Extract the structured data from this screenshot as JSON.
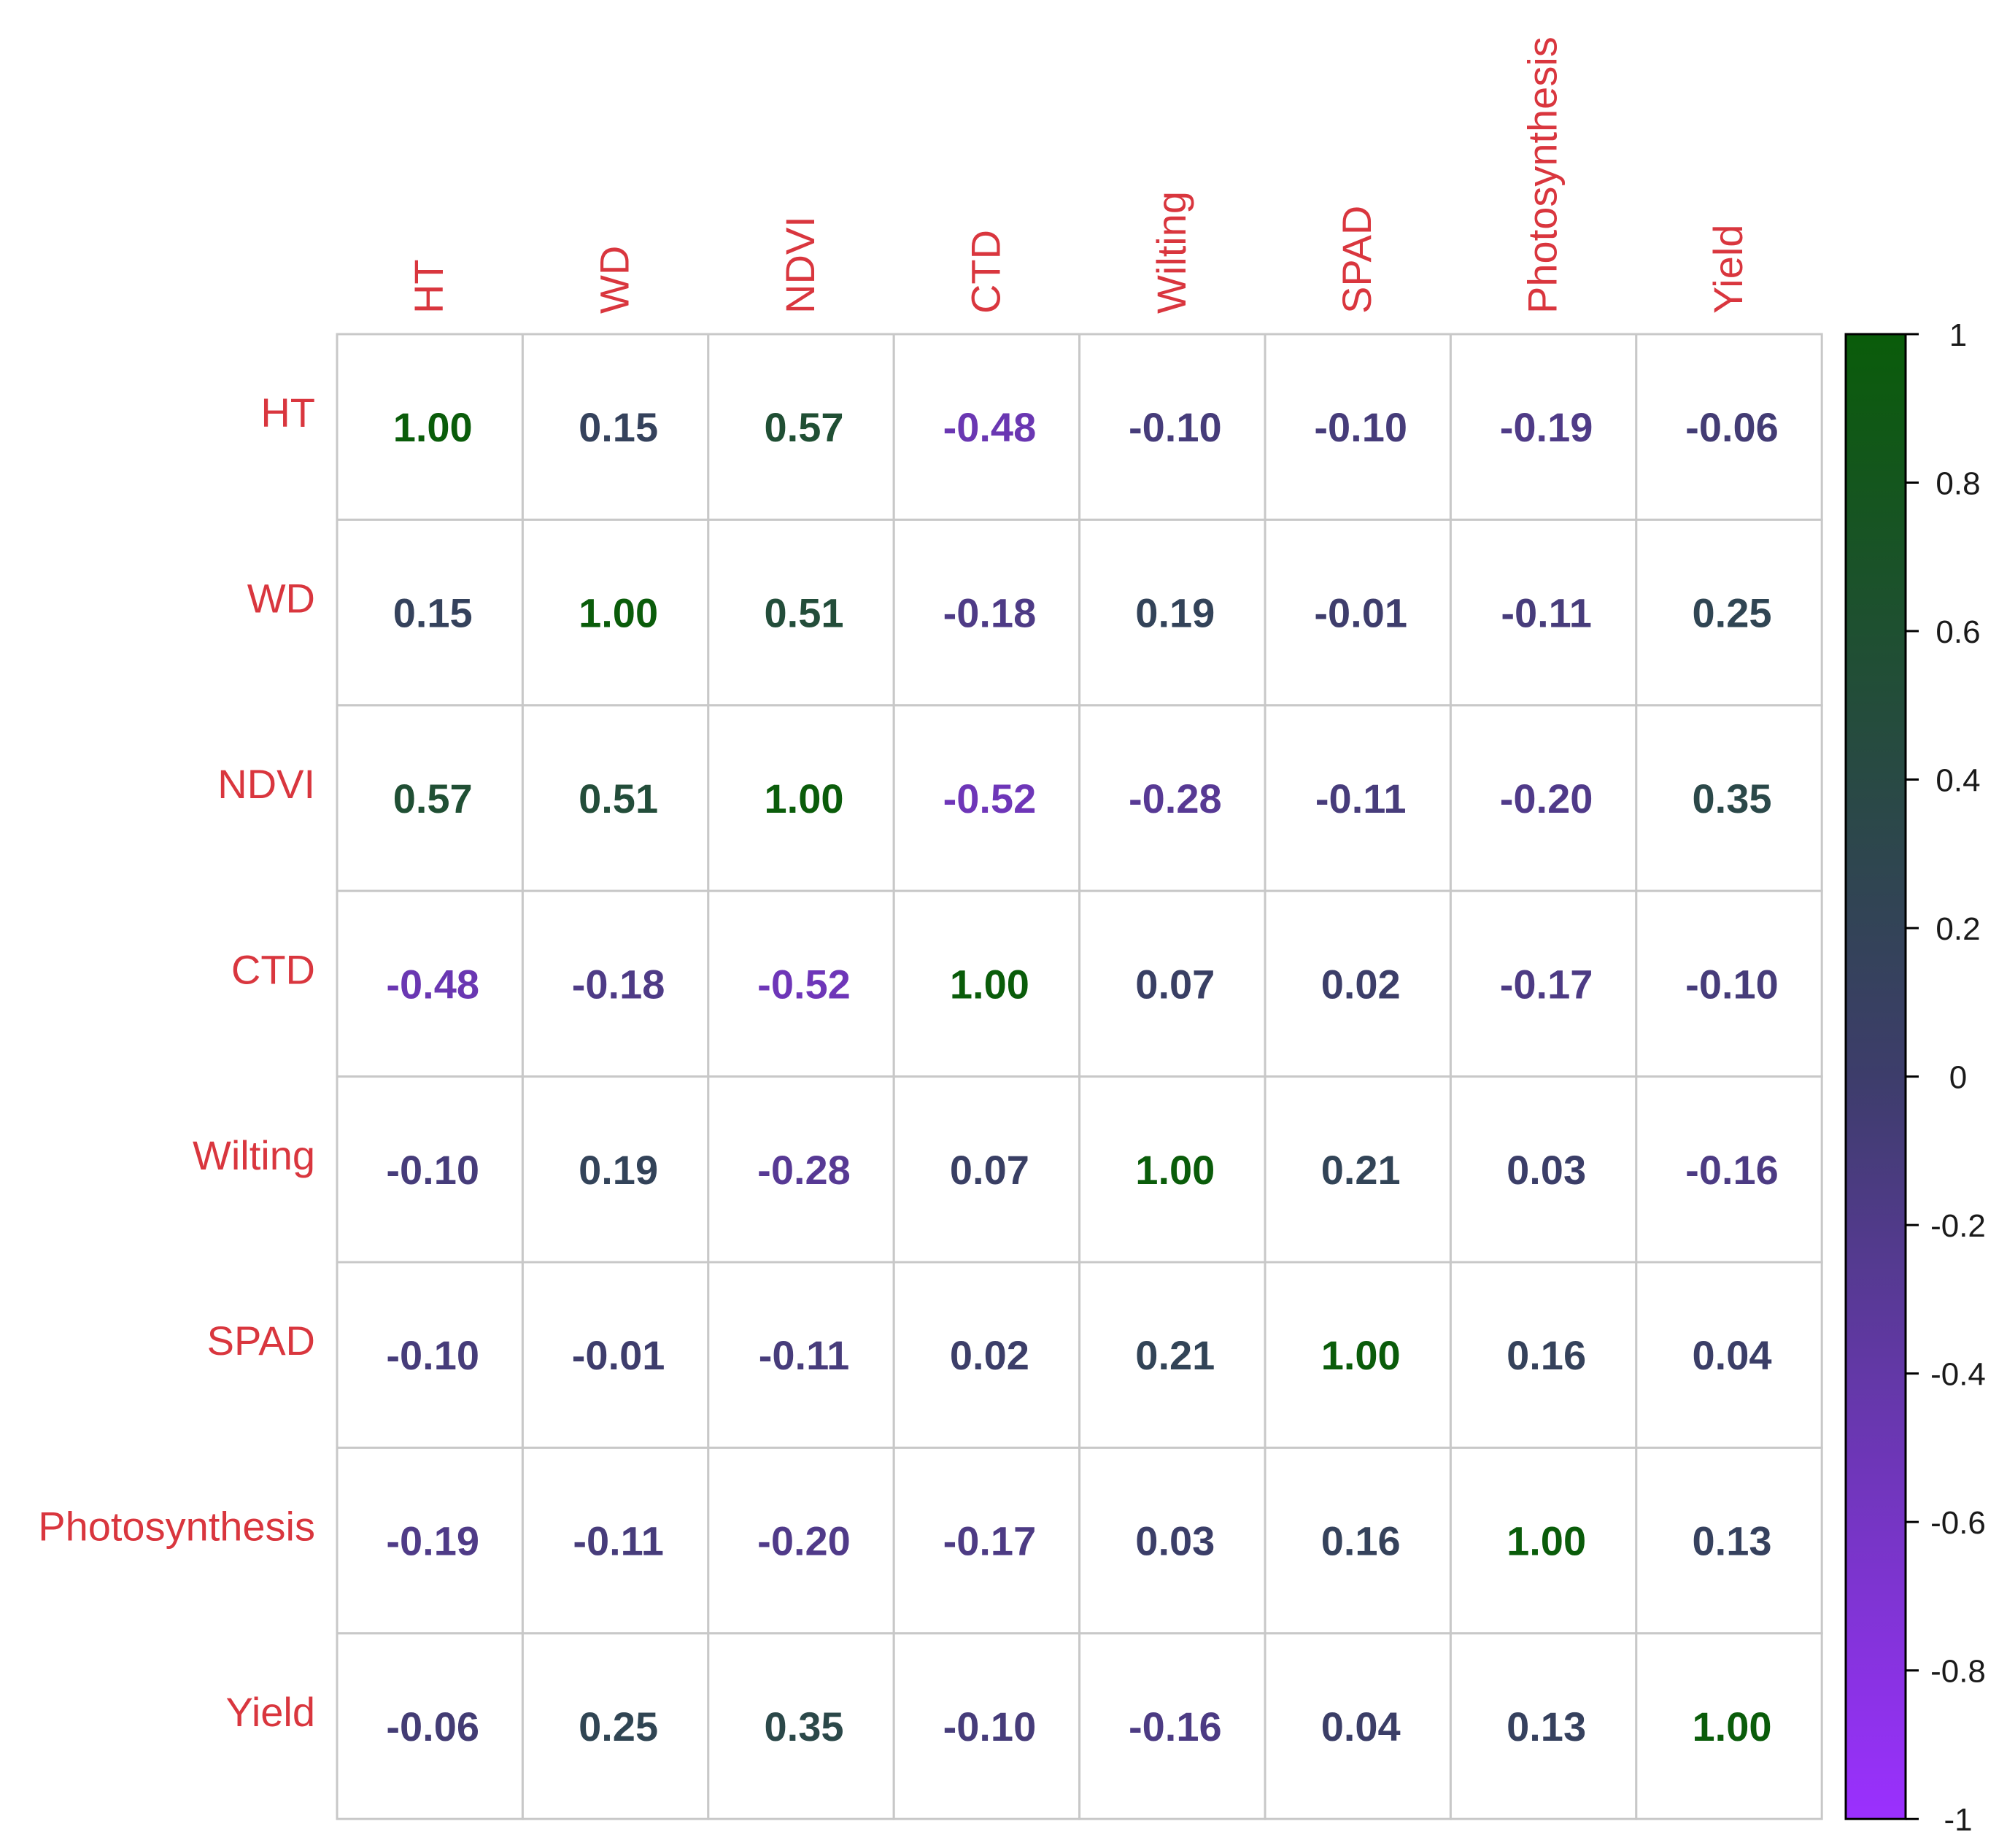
{
  "chart_data": {
    "type": "heatmap",
    "variables": [
      "HT",
      "WD",
      "NDVI",
      "CTD",
      "Wilting",
      "SPAD",
      "Photosynthesis",
      "Yield"
    ],
    "matrix": [
      [
        1.0,
        0.15,
        0.57,
        -0.48,
        -0.1,
        -0.1,
        -0.19,
        -0.06
      ],
      [
        0.15,
        1.0,
        0.51,
        -0.18,
        0.19,
        -0.01,
        -0.11,
        0.25
      ],
      [
        0.57,
        0.51,
        1.0,
        -0.52,
        -0.28,
        -0.11,
        -0.2,
        0.35
      ],
      [
        -0.48,
        -0.18,
        -0.52,
        1.0,
        0.07,
        0.02,
        -0.17,
        -0.1
      ],
      [
        -0.1,
        0.19,
        -0.28,
        0.07,
        1.0,
        0.21,
        0.03,
        -0.16
      ],
      [
        -0.1,
        -0.01,
        -0.11,
        0.02,
        0.21,
        1.0,
        0.16,
        0.04
      ],
      [
        -0.19,
        -0.11,
        -0.2,
        -0.17,
        0.03,
        0.16,
        1.0,
        0.13
      ],
      [
        -0.06,
        0.25,
        0.35,
        -0.1,
        -0.16,
        0.04,
        0.13,
        1.0
      ]
    ],
    "value_format": "2 decimals",
    "label_color": "#d9363e",
    "color_scale": {
      "min": -1,
      "max": 1,
      "low_color": "#9b30ff",
      "mid_color": "#3d3d6b",
      "high_color": "#0a5c0a"
    },
    "legend": {
      "position": "right",
      "ticks": [
        1,
        0.8,
        0.6,
        0.4,
        0.2,
        0,
        -0.2,
        -0.4,
        -0.6,
        -0.8,
        -1
      ],
      "tick_labels": [
        "1",
        "0.8",
        "0.6",
        "0.4",
        "0.2",
        "0",
        "-0.2",
        "-0.4",
        "-0.6",
        "-0.8",
        "-1"
      ]
    },
    "grid": true
  }
}
